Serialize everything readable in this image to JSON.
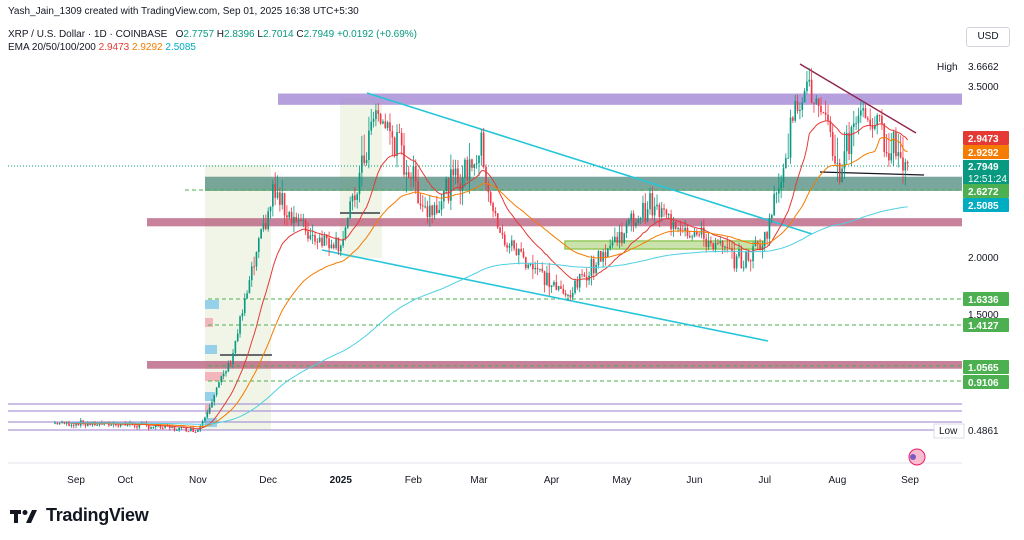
{
  "header": {
    "creator": "Yash_Jain_1309 created with TradingView.com, Sep 01, 2025 16:38 UTC+5:30",
    "symbol": "XRP / U.S. Dollar · 1D · COINBASE",
    "o_label": "O",
    "o_value": "2.7757",
    "h_label": "H",
    "h_value": "2.8396",
    "l_label": "L",
    "l_value": "2.7014",
    "c_label": "C",
    "c_value": "2.7949",
    "change": "+0.0192 (+0.69%)",
    "ema_label": "EMA 20/50/100/200",
    "ema20": "2.9473",
    "ema50": "2.9292",
    "ema100": "2.5085",
    "currency": "USD"
  },
  "colors": {
    "up": "#089981",
    "down": "#f23645",
    "ema20": "#e53935",
    "ema50": "#f57c00",
    "ema200": "#4dd0e1",
    "trend": "#26c6da",
    "zone_purple": "#9c7fd0",
    "zone_red": "#b5577a",
    "zone_teal": "#4e8a7c",
    "zone_green": "#8bc34a"
  },
  "chart_data": {
    "type": "candlestick",
    "x_ticks": [
      "Sep",
      "Oct",
      "Nov",
      "Dec",
      "2025",
      "Feb",
      "Mar",
      "Apr",
      "May",
      "Jun",
      "Jul",
      "Aug",
      "Sep"
    ],
    "y_axis_ticks": [
      "3.5000",
      "2.0000",
      "1.5000"
    ],
    "price_labels": [
      {
        "name": "High",
        "value": "3.6662"
      },
      {
        "name": "ema20",
        "value": "2.9473"
      },
      {
        "name": "ema50",
        "value": "2.9292"
      },
      {
        "name": "last",
        "value": "2.7949",
        "countdown": "12:51:24"
      },
      {
        "name": "support",
        "value": "2.6272"
      },
      {
        "name": "ema100",
        "value": "2.5085"
      },
      {
        "name": "support",
        "value": "1.6336"
      },
      {
        "name": "support",
        "value": "1.4127"
      },
      {
        "name": "support",
        "value": "1.0565"
      },
      {
        "name": "support",
        "value": "0.9106"
      },
      {
        "name": "Low",
        "value": "0.4861"
      }
    ],
    "price_path": [
      [
        "2024-09-01",
        0.56
      ],
      [
        "2024-10-01",
        0.55
      ],
      [
        "2024-11-01",
        0.5
      ],
      [
        "2024-11-15",
        1.1
      ],
      [
        "2024-12-03",
        2.6
      ],
      [
        "2024-12-20",
        2.2
      ],
      [
        "2025-01-01",
        2.15
      ],
      [
        "2025-01-16",
        3.2
      ],
      [
        "2025-02-01",
        2.7
      ],
      [
        "2025-02-07",
        2.45
      ],
      [
        "2025-03-02",
        2.9
      ],
      [
        "2025-03-10",
        2.2
      ],
      [
        "2025-04-07",
        1.65
      ],
      [
        "2025-05-12",
        2.5
      ],
      [
        "2025-06-22",
        1.95
      ],
      [
        "2025-07-01",
        2.2
      ],
      [
        "2025-07-18",
        3.55
      ],
      [
        "2025-08-02",
        2.75
      ],
      [
        "2025-08-10",
        3.25
      ],
      [
        "2025-09-01",
        2.79
      ]
    ],
    "annotations": [
      {
        "type": "zone",
        "low": 3.3,
        "high": 3.42
      },
      {
        "type": "zone",
        "low": 2.62,
        "high": 2.72
      },
      {
        "type": "zone",
        "low": 2.3,
        "high": 2.38
      },
      {
        "type": "zone",
        "low": 1.03,
        "high": 1.1
      },
      {
        "type": "falling-channel",
        "from": "2025-01-15",
        "to": "2025-07-10"
      },
      {
        "type": "descending-triangle",
        "from": "2025-07-18",
        "to": "2025-09-01"
      }
    ]
  },
  "branding": {
    "logo_text": "TradingView"
  }
}
